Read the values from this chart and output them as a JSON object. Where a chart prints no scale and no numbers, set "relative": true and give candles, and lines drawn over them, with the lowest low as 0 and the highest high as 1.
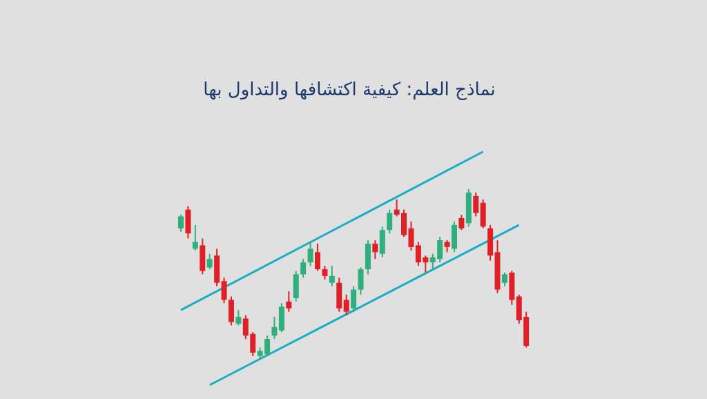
{
  "chart_data": {
    "type": "candlestick",
    "title": "نماذج العلم: كيفية اكتشافها والتداول بها",
    "relative": true,
    "categories": [
      null,
      null,
      null,
      null,
      null,
      null,
      null,
      null,
      null,
      null,
      null,
      null,
      null,
      null,
      null,
      null,
      null,
      null,
      null,
      null,
      null,
      null,
      null,
      null,
      null,
      null,
      null,
      null,
      null,
      null,
      null,
      null,
      null,
      null,
      null,
      null,
      null,
      null,
      null,
      null,
      null,
      null,
      null,
      null,
      null,
      null,
      null,
      null,
      null
    ],
    "ohlc": [
      [
        0.77,
        0.85,
        0.75,
        0.84
      ],
      [
        0.88,
        0.9,
        0.71,
        0.74
      ],
      [
        0.65,
        0.79,
        0.64,
        0.69
      ],
      [
        0.67,
        0.71,
        0.5,
        0.52
      ],
      [
        0.54,
        0.62,
        0.53,
        0.59
      ],
      [
        0.61,
        0.65,
        0.43,
        0.45
      ],
      [
        0.46,
        0.48,
        0.33,
        0.35
      ],
      [
        0.35,
        0.37,
        0.2,
        0.22
      ],
      [
        0.21,
        0.29,
        0.2,
        0.25
      ],
      [
        0.24,
        0.26,
        0.12,
        0.14
      ],
      [
        0.15,
        0.16,
        0.02,
        0.04
      ],
      [
        0.02,
        0.07,
        0,
        0.05
      ],
      [
        0.03,
        0.14,
        0.02,
        0.12
      ],
      [
        0.14,
        0.25,
        0.12,
        0.19
      ],
      [
        0.17,
        0.33,
        0.16,
        0.31
      ],
      [
        0.34,
        0.4,
        0.28,
        0.3
      ],
      [
        0.36,
        0.52,
        0.34,
        0.5
      ],
      [
        0.5,
        0.59,
        0.48,
        0.57
      ],
      [
        0.57,
        0.69,
        0.55,
        0.65
      ],
      [
        0.63,
        0.68,
        0.52,
        0.53
      ],
      [
        0.53,
        0.55,
        0.47,
        0.49
      ],
      [
        0.45,
        0.55,
        0.43,
        0.49
      ],
      [
        0.45,
        0.48,
        0.28,
        0.3
      ],
      [
        0.35,
        0.38,
        0.26,
        0.28
      ],
      [
        0.3,
        0.43,
        0.28,
        0.41
      ],
      [
        0.41,
        0.54,
        0.38,
        0.53
      ],
      [
        0.53,
        0.7,
        0.5,
        0.68
      ],
      [
        0.68,
        0.7,
        0.59,
        0.63
      ],
      [
        0.62,
        0.78,
        0.6,
        0.76
      ],
      [
        0.76,
        0.88,
        0.74,
        0.86
      ],
      [
        0.88,
        0.94,
        0.84,
        0.85
      ],
      [
        0.86,
        0.88,
        0.72,
        0.73
      ],
      [
        0.77,
        0.81,
        0.64,
        0.66
      ],
      [
        0.67,
        0.69,
        0.55,
        0.57
      ],
      [
        0.6,
        0.61,
        0.51,
        0.57
      ],
      [
        0.57,
        0.62,
        0.53,
        0.6
      ],
      [
        0.59,
        0.72,
        0.57,
        0.7
      ],
      [
        0.69,
        0.7,
        0.63,
        0.66
      ],
      [
        0.65,
        0.81,
        0.63,
        0.79
      ],
      [
        0.83,
        0.85,
        0.76,
        0.77
      ],
      [
        0.8,
        1,
        0.78,
        0.98
      ],
      [
        0.96,
        0.98,
        0.84,
        0.86
      ],
      [
        0.92,
        0.94,
        0.77,
        0.78
      ],
      [
        0.77,
        0.79,
        0.58,
        0.61
      ],
      [
        0.63,
        0.7,
        0.39,
        0.41
      ],
      [
        0.45,
        0.51,
        0.43,
        0.5
      ],
      [
        0.51,
        0.52,
        0.32,
        0.35
      ],
      [
        0.37,
        0.38,
        0.21,
        0.23
      ],
      [
        0.25,
        0.28,
        0.07,
        0.08
      ]
    ],
    "colors": [
      "#2eaf7d",
      "#e02027",
      "#2eaf7d",
      "#e02027",
      "#2eaf7d",
      "#e02027",
      "#e02027",
      "#e02027",
      "#2eaf7d",
      "#e02027",
      "#e02027",
      "#2eaf7d",
      "#2eaf7d",
      "#2eaf7d",
      "#2eaf7d",
      "#e02027",
      "#2eaf7d",
      "#2eaf7d",
      "#2eaf7d",
      "#e02027",
      "#e02027",
      "#2eaf7d",
      "#e02027",
      "#e02027",
      "#2eaf7d",
      "#2eaf7d",
      "#2eaf7d",
      "#e02027",
      "#2eaf7d",
      "#2eaf7d",
      "#e02027",
      "#e02027",
      "#e02027",
      "#e02027",
      "#e02027",
      "#2eaf7d",
      "#2eaf7d",
      "#e02027",
      "#2eaf7d",
      "#e02027",
      "#2eaf7d",
      "#e02027",
      "#e02027",
      "#e02027",
      "#e02027",
      "#2eaf7d",
      "#e02027",
      "#e02027",
      "#e02027"
    ],
    "series": [
      {
        "type": "line",
        "color": "#1aaec4",
        "values": [
          0.29,
          null,
          null,
          null,
          null,
          null,
          null,
          null,
          null,
          null,
          null,
          null,
          null,
          null,
          null,
          null,
          null,
          null,
          null,
          null,
          null,
          null,
          null,
          null,
          null,
          null,
          null,
          null,
          null,
          null,
          null,
          null,
          null,
          null,
          null,
          null,
          null,
          null,
          null,
          null,
          null,
          null,
          1.22,
          null,
          null,
          null,
          null,
          null,
          null
        ]
      },
      {
        "type": "line",
        "color": "#1aaec4",
        "values": [
          null,
          null,
          null,
          null,
          -0.15,
          null,
          null,
          null,
          null,
          null,
          null,
          null,
          null,
          null,
          null,
          null,
          null,
          null,
          null,
          null,
          null,
          null,
          null,
          null,
          null,
          null,
          null,
          null,
          null,
          null,
          null,
          null,
          null,
          null,
          null,
          null,
          null,
          null,
          null,
          null,
          null,
          null,
          null,
          null,
          null,
          null,
          null,
          0.79,
          null
        ]
      }
    ]
  }
}
